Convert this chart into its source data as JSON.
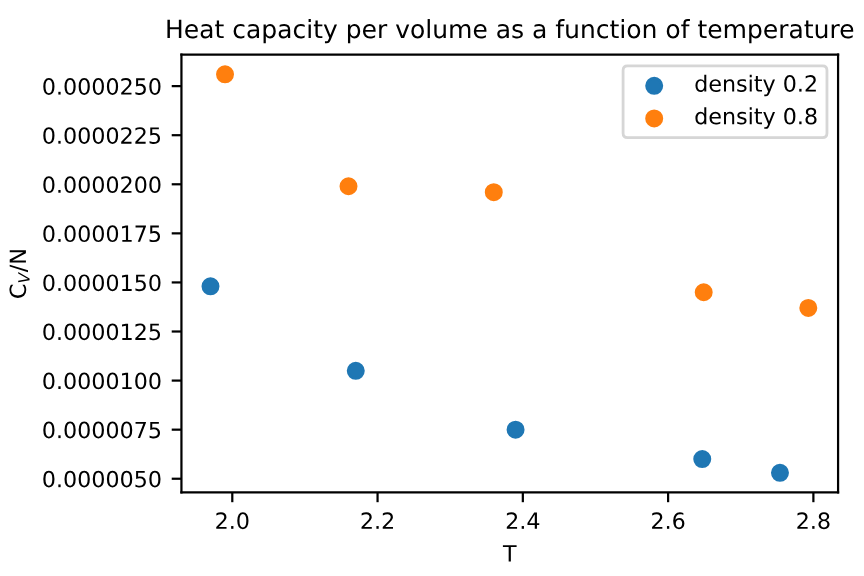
{
  "chart_data": {
    "type": "scatter",
    "title": "Heat capacity per volume as a function of temperature",
    "xlabel": "T",
    "ylabel": "C$_{V}$/N",
    "legend": "top right",
    "marker": "circle",
    "grid": false,
    "series": [
      {
        "name": "density 0.2",
        "color": "#1f77b4",
        "x": [
          1.97,
          2.17,
          2.39,
          2.647,
          2.754
        ],
        "values": [
          1.48e-05,
          1.05e-05,
          7.5e-06,
          6e-06,
          5.3e-06
        ]
      },
      {
        "name": "density 0.8",
        "color": "#ff7f0e",
        "x": [
          1.99,
          2.16,
          2.36,
          2.649,
          2.793
        ],
        "values": [
          2.56e-05,
          1.99e-05,
          1.96e-05,
          1.45e-05,
          1.37e-05
        ]
      }
    ],
    "xlim": [
      1.93,
      2.834
    ],
    "ylim": [
      4.3e-06,
      2.66e-05
    ],
    "xticks": [
      {
        "value": 2.0,
        "label": "2.0"
      },
      {
        "value": 2.2,
        "label": "2.2"
      },
      {
        "value": 2.4,
        "label": "2.4"
      },
      {
        "value": 2.6,
        "label": "2.6"
      },
      {
        "value": 2.8,
        "label": "2.8"
      }
    ],
    "yticks": [
      {
        "value": 5e-06,
        "label": "0.0000050"
      },
      {
        "value": 7.5e-06,
        "label": "0.0000075"
      },
      {
        "value": 1e-05,
        "label": "0.0000100"
      },
      {
        "value": 1.25e-05,
        "label": "0.0000125"
      },
      {
        "value": 1.5e-05,
        "label": "0.0000150"
      },
      {
        "value": 1.75e-05,
        "label": "0.0000175"
      },
      {
        "value": 2e-05,
        "label": "0.0000200"
      },
      {
        "value": 2.25e-05,
        "label": "0.0000225"
      },
      {
        "value": 2.5e-05,
        "label": "0.0000250"
      }
    ]
  }
}
